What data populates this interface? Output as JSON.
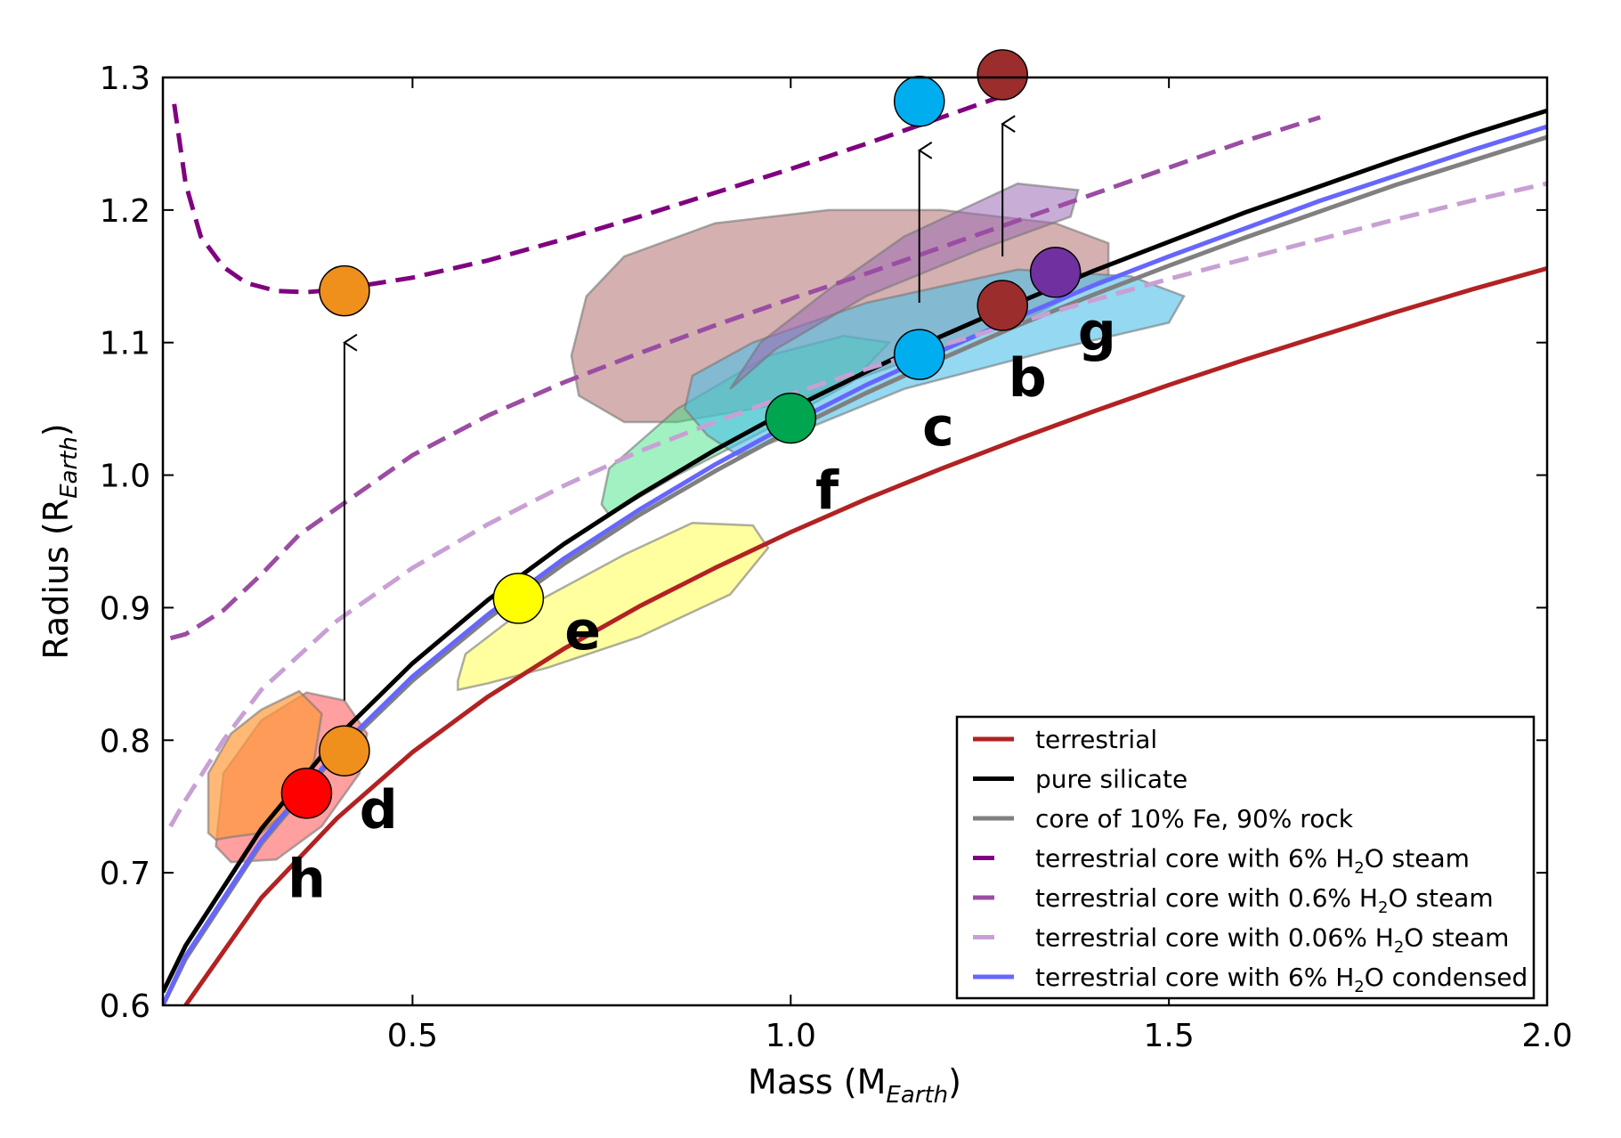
{
  "chart_data": {
    "type": "scatter",
    "xlabel": {
      "main": "Mass (M",
      "sub": "Earth",
      "close": ")"
    },
    "ylabel": {
      "main": "Radius (R",
      "sub": "Earth",
      "close": ")"
    },
    "xlim": [
      0.17,
      2.0
    ],
    "ylim": [
      0.6,
      1.3
    ],
    "xticks": [
      {
        "value": 0.5,
        "label": "0.5"
      },
      {
        "value": 1.0,
        "label": "1.0"
      },
      {
        "value": 1.5,
        "label": "1.5"
      },
      {
        "value": 2.0,
        "label": "2.0"
      }
    ],
    "yticks": [
      {
        "value": 0.6,
        "label": "0.6"
      },
      {
        "value": 0.7,
        "label": "0.7"
      },
      {
        "value": 0.8,
        "label": "0.8"
      },
      {
        "value": 0.9,
        "label": "0.9"
      },
      {
        "value": 1.0,
        "label": "1.0"
      },
      {
        "value": 1.1,
        "label": "1.1"
      },
      {
        "value": 1.2,
        "label": "1.2"
      },
      {
        "value": 1.3,
        "label": "1.3"
      }
    ],
    "curves": [
      {
        "id": "terrestrial",
        "color": "#b22222",
        "dash": false,
        "opacity": 1,
        "x": [
          0.2,
          0.3,
          0.4,
          0.5,
          0.6,
          0.7,
          0.8,
          0.9,
          1.0,
          1.1,
          1.2,
          1.3,
          1.4,
          1.5,
          1.6,
          1.7,
          1.8,
          1.9,
          2.0
        ],
        "y": [
          0.6,
          0.681,
          0.741,
          0.791,
          0.833,
          0.869,
          0.901,
          0.93,
          0.957,
          0.982,
          1.005,
          1.027,
          1.048,
          1.068,
          1.087,
          1.105,
          1.123,
          1.14,
          1.156
        ]
      },
      {
        "id": "silicate",
        "color": "#000000",
        "dash": false,
        "opacity": 1,
        "x": [
          0.17,
          0.2,
          0.3,
          0.4,
          0.5,
          0.6,
          0.7,
          0.8,
          0.9,
          1.0,
          1.1,
          1.2,
          1.3,
          1.4,
          1.5,
          1.6,
          1.7,
          1.8,
          1.9,
          2.0
        ],
        "y": [
          0.61,
          0.645,
          0.733,
          0.802,
          0.858,
          0.906,
          0.948,
          0.985,
          1.019,
          1.05,
          1.078,
          1.105,
          1.13,
          1.154,
          1.176,
          1.198,
          1.218,
          1.238,
          1.257,
          1.275
        ]
      },
      {
        "id": "core10fe",
        "color": "#808080",
        "dash": false,
        "opacity": 1,
        "x": [
          0.17,
          0.2,
          0.3,
          0.4,
          0.5,
          0.6,
          0.7,
          0.8,
          0.9,
          1.0,
          1.1,
          1.2,
          1.3,
          1.4,
          1.5,
          1.6,
          1.7,
          1.8,
          1.9,
          2.0
        ],
        "y": [
          0.6,
          0.635,
          0.722,
          0.79,
          0.845,
          0.892,
          0.933,
          0.97,
          1.003,
          1.034,
          1.062,
          1.088,
          1.113,
          1.136,
          1.158,
          1.179,
          1.199,
          1.219,
          1.237,
          1.255
        ]
      },
      {
        "id": "condensed",
        "color": "#6666ff",
        "dash": false,
        "opacity": 1,
        "x": [
          0.17,
          0.2,
          0.3,
          0.4,
          0.5,
          0.6,
          0.7,
          0.8,
          0.9,
          1.0,
          1.1,
          1.2,
          1.3,
          1.4,
          1.5,
          1.6,
          1.7,
          1.8,
          1.9,
          2.0
        ],
        "y": [
          0.6,
          0.637,
          0.724,
          0.792,
          0.848,
          0.895,
          0.937,
          0.974,
          1.008,
          1.039,
          1.068,
          1.094,
          1.119,
          1.143,
          1.165,
          1.186,
          1.207,
          1.226,
          1.245,
          1.263
        ]
      },
      {
        "id": "steam6",
        "color": "#800080",
        "dash": true,
        "opacity": 1,
        "x": [
          0.185,
          0.2,
          0.22,
          0.25,
          0.28,
          0.32,
          0.36,
          0.4,
          0.5,
          0.6,
          0.7,
          0.8,
          0.9,
          1.0,
          1.1,
          1.2,
          1.3
        ],
        "y": [
          1.28,
          1.22,
          1.18,
          1.157,
          1.145,
          1.139,
          1.138,
          1.14,
          1.149,
          1.162,
          1.178,
          1.195,
          1.213,
          1.231,
          1.25,
          1.27,
          1.29
        ]
      },
      {
        "id": "steam06",
        "color": "#9b4da3",
        "dash": true,
        "opacity": 1,
        "x": [
          0.18,
          0.2,
          0.25,
          0.3,
          0.35,
          0.4,
          0.5,
          0.6,
          0.7,
          0.8,
          0.9,
          1.0,
          1.1,
          1.2,
          1.3,
          1.4,
          1.5,
          1.6,
          1.7
        ],
        "y": [
          0.877,
          0.88,
          0.898,
          0.925,
          0.955,
          0.975,
          1.015,
          1.045,
          1.07,
          1.092,
          1.113,
          1.133,
          1.152,
          1.172,
          1.192,
          1.212,
          1.232,
          1.252,
          1.27
        ]
      },
      {
        "id": "steam006",
        "color": "#c8a0d4",
        "dash": true,
        "opacity": 1,
        "x": [
          0.18,
          0.2,
          0.25,
          0.3,
          0.4,
          0.5,
          0.6,
          0.7,
          0.8,
          0.9,
          1.0,
          1.1,
          1.2,
          1.3,
          1.4,
          1.5,
          1.6,
          1.7,
          1.8,
          1.9,
          2.0
        ],
        "y": [
          0.735,
          0.755,
          0.8,
          0.838,
          0.89,
          0.93,
          0.963,
          0.992,
          1.018,
          1.04,
          1.061,
          1.08,
          1.098,
          1.115,
          1.132,
          1.148,
          1.163,
          1.178,
          1.193,
          1.207,
          1.22
        ]
      }
    ],
    "regions": [
      {
        "id": "b",
        "color": "#a0524f",
        "opacity": 0.45,
        "x": [
          0.71,
          0.73,
          0.78,
          0.9,
          1.05,
          1.2,
          1.35,
          1.42,
          1.42,
          1.32,
          1.15,
          1.0,
          0.85,
          0.78,
          0.72
        ],
        "y": [
          1.09,
          1.135,
          1.165,
          1.19,
          1.2,
          1.2,
          1.19,
          1.175,
          1.15,
          1.12,
          1.085,
          1.055,
          1.04,
          1.04,
          1.06
        ]
      },
      {
        "id": "f",
        "color": "#2ee07a",
        "opacity": 0.45,
        "x": [
          0.75,
          0.76,
          0.85,
          0.97,
          1.07,
          1.13,
          1.08,
          0.97,
          0.85,
          0.76
        ],
        "y": [
          0.978,
          1.005,
          1.05,
          1.09,
          1.105,
          1.1,
          1.07,
          1.035,
          1.0,
          0.97
        ]
      },
      {
        "id": "c",
        "color": "#4dbee8",
        "opacity": 0.6,
        "x": [
          0.86,
          0.87,
          0.95,
          1.1,
          1.3,
          1.45,
          1.52,
          1.5,
          1.35,
          1.15,
          1.0,
          0.93,
          0.89
        ],
        "y": [
          1.05,
          1.075,
          1.1,
          1.13,
          1.155,
          1.15,
          1.135,
          1.115,
          1.095,
          1.065,
          1.03,
          1.015,
          1.03
        ]
      },
      {
        "id": "g",
        "color": "#9a6bb5",
        "opacity": 0.55,
        "x": [
          0.92,
          0.96,
          1.05,
          1.15,
          1.3,
          1.38,
          1.37,
          1.25,
          1.1,
          0.98,
          0.93
        ],
        "y": [
          1.065,
          1.1,
          1.14,
          1.18,
          1.22,
          1.215,
          1.195,
          1.17,
          1.135,
          1.095,
          1.07
        ]
      },
      {
        "id": "e",
        "color": "#ffff60",
        "opacity": 0.6,
        "x": [
          0.56,
          0.57,
          0.65,
          0.78,
          0.87,
          0.95,
          0.97,
          0.92,
          0.8,
          0.68,
          0.6,
          0.56
        ],
        "y": [
          0.845,
          0.865,
          0.9,
          0.94,
          0.964,
          0.962,
          0.945,
          0.91,
          0.878,
          0.855,
          0.843,
          0.838
        ]
      },
      {
        "id": "h",
        "color": "#ff5050",
        "opacity": 0.55,
        "x": [
          0.24,
          0.25,
          0.3,
          0.36,
          0.41,
          0.44,
          0.43,
          0.38,
          0.32,
          0.26
        ],
        "y": [
          0.72,
          0.775,
          0.815,
          0.836,
          0.83,
          0.805,
          0.775,
          0.735,
          0.71,
          0.708
        ]
      },
      {
        "id": "d",
        "color": "#ff9a3a",
        "opacity": 0.7,
        "x": [
          0.23,
          0.23,
          0.26,
          0.3,
          0.35,
          0.38,
          0.37,
          0.34,
          0.3,
          0.26,
          0.24
        ],
        "y": [
          0.73,
          0.775,
          0.805,
          0.823,
          0.837,
          0.82,
          0.785,
          0.75,
          0.73,
          0.727,
          0.725
        ]
      }
    ],
    "planets": [
      {
        "id": "h",
        "label": "h",
        "mass": 0.36,
        "radius": 0.76,
        "color": "#ff0000",
        "label_dx": 0.0,
        "label_dy": -0.065
      },
      {
        "id": "d",
        "label": "d",
        "mass": 0.41,
        "radius": 0.792,
        "color": "#ef8f1c",
        "label_dx": 0.045,
        "label_dy": -0.045
      },
      {
        "id": "d_steam",
        "label": "",
        "mass": 0.41,
        "radius": 1.139,
        "color": "#ef8f1c",
        "label_dx": 0,
        "label_dy": 0
      },
      {
        "id": "e",
        "label": "e",
        "mass": 0.64,
        "radius": 0.907,
        "color": "#ffff00",
        "label_dx": 0.085,
        "label_dy": -0.025
      },
      {
        "id": "f",
        "label": "f",
        "mass": 1.0,
        "radius": 1.043,
        "color": "#00a550",
        "label_dx": 0.048,
        "label_dy": -0.055
      },
      {
        "id": "c",
        "label": "c",
        "mass": 1.17,
        "radius": 1.091,
        "color": "#00aeef",
        "label_dx": 0.025,
        "label_dy": -0.055
      },
      {
        "id": "c_steam",
        "label": "",
        "mass": 1.17,
        "radius": 1.282,
        "color": "#00aeef",
        "label_dx": 0,
        "label_dy": 0
      },
      {
        "id": "b",
        "label": "b",
        "mass": 1.28,
        "radius": 1.128,
        "color": "#9b2d2d",
        "label_dx": 0.033,
        "label_dy": -0.055
      },
      {
        "id": "b_steam",
        "label": "",
        "mass": 1.28,
        "radius": 1.302,
        "color": "#9b2d2d",
        "label_dx": 0,
        "label_dy": 0
      },
      {
        "id": "g",
        "label": "g",
        "mass": 1.35,
        "radius": 1.153,
        "color": "#7030a0",
        "label_dx": 0.055,
        "label_dy": -0.045
      }
    ],
    "arrows": [
      {
        "x": 0.41,
        "y0": 0.83,
        "y1": 1.1
      },
      {
        "x": 1.17,
        "y0": 1.13,
        "y1": 1.245
      },
      {
        "x": 1.28,
        "y0": 1.165,
        "y1": 1.265
      }
    ],
    "legend": {
      "position": "lower-right",
      "entries": [
        {
          "color": "#b22222",
          "dash": false,
          "pre": "terrestrial",
          "sub": "",
          "post": ""
        },
        {
          "color": "#000000",
          "dash": false,
          "pre": "pure silicate",
          "sub": "",
          "post": ""
        },
        {
          "color": "#808080",
          "dash": false,
          "pre": "core of 10% Fe, 90% rock",
          "sub": "",
          "post": ""
        },
        {
          "color": "#800080",
          "dash": true,
          "pre": "terrestrial core with 6% H",
          "sub": "2",
          "post": "O steam"
        },
        {
          "color": "#9b4da3",
          "dash": true,
          "pre": "terrestrial core with 0.6% H",
          "sub": "2",
          "post": "O steam"
        },
        {
          "color": "#c8a0d4",
          "dash": true,
          "pre": "terrestrial core with 0.06% H",
          "sub": "2",
          "post": "O steam"
        },
        {
          "color": "#6666ff",
          "dash": false,
          "pre": "terrestrial core with 6% H",
          "sub": "2",
          "post": "O condensed"
        }
      ]
    }
  }
}
